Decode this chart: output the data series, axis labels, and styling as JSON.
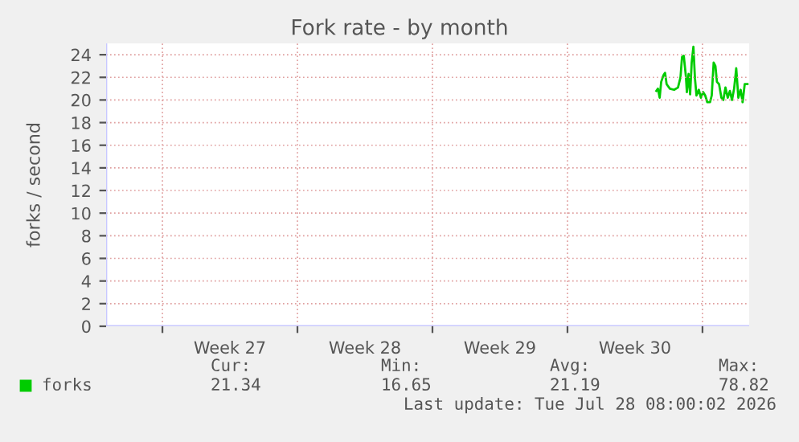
{
  "chart_data": {
    "type": "line",
    "title": "Fork rate - by month",
    "ylabel": "forks / second",
    "xlim": [
      "2026-06-26T01:55",
      "2026-07-29T10:05"
    ],
    "ylim": [
      0,
      25
    ],
    "xticks": [
      {
        "value": "2026-06-29",
        "label": null
      },
      {
        "value": "2026-07-02T12:00",
        "label": "Week 27"
      },
      {
        "value": "2026-07-06",
        "label": null
      },
      {
        "value": "2026-07-09T12:00",
        "label": "Week 28"
      },
      {
        "value": "2026-07-13",
        "label": null
      },
      {
        "value": "2026-07-16T12:00",
        "label": "Week 29"
      },
      {
        "value": "2026-07-20",
        "label": null
      },
      {
        "value": "2026-07-23T12:00",
        "label": "Week 30"
      },
      {
        "value": "2026-07-27",
        "label": null
      }
    ],
    "yticks": [
      0,
      2,
      4,
      6,
      8,
      10,
      12,
      14,
      16,
      18,
      20,
      22,
      24
    ],
    "grid": true,
    "legend": "bottom left",
    "annotations": [
      "Cur:",
      "Min:",
      "Avg:",
      "Max:",
      "21.34",
      "16.65",
      "21.19",
      "78.82",
      "Last update: Tue Jul 28 08:00:02 2026"
    ],
    "series": [
      {
        "name": "forks",
        "color": "#00cc00",
        "x": [
          "2026-07-24T14:38",
          "2026-07-24T16:34",
          "2026-07-24T18:43",
          "2026-07-24T20:38",
          "2026-07-24T23:31",
          "2026-07-25T01:26",
          "2026-07-25T03:22",
          "2026-07-25T07:26",
          "2026-07-25T12:43",
          "2026-07-25T17:31",
          "2026-07-25T20:38",
          "2026-07-25T22:34",
          "2026-07-26T00:43",
          "2026-07-26T03:22",
          "2026-07-26T04:34",
          "2026-07-26T06:43",
          "2026-07-26T08:38",
          "2026-07-26T10:34",
          "2026-07-26T12:43",
          "2026-07-26T14:38",
          "2026-07-26T16:34",
          "2026-07-26T19:26",
          "2026-07-26T22:05",
          "2026-07-27T00:43",
          "2026-07-27T03:22",
          "2026-07-27T06:00",
          "2026-07-27T09:22",
          "2026-07-27T11:31",
          "2026-07-27T13:55",
          "2026-07-27T16:05",
          "2026-07-27T18:00",
          "2026-07-27T20:38",
          "2026-07-27T23:31",
          "2026-07-28T01:55",
          "2026-07-28T04:34",
          "2026-07-28T07:26",
          "2026-07-28T10:05",
          "2026-07-28T12:43",
          "2026-07-28T15:22",
          "2026-07-28T18:00",
          "2026-07-28T20:38",
          "2026-07-28T23:31",
          "2026-07-29T01:55",
          "2026-07-29T04:34",
          "2026-07-29T07:55"
        ],
        "values": [
          20.8,
          21.0,
          20.2,
          21.6,
          22.2,
          22.4,
          21.4,
          21.0,
          20.9,
          21.1,
          22.0,
          23.8,
          23.9,
          22.1,
          20.7,
          22.3,
          20.5,
          23.3,
          24.7,
          21.9,
          20.4,
          20.9,
          20.2,
          20.7,
          20.4,
          19.8,
          19.8,
          20.4,
          23.3,
          23.0,
          21.6,
          21.4,
          20.2,
          20.0,
          21.1,
          20.2,
          20.8,
          20.0,
          21.0,
          22.8,
          20.2,
          20.9,
          19.8,
          21.4,
          21.4
        ]
      }
    ]
  }
}
